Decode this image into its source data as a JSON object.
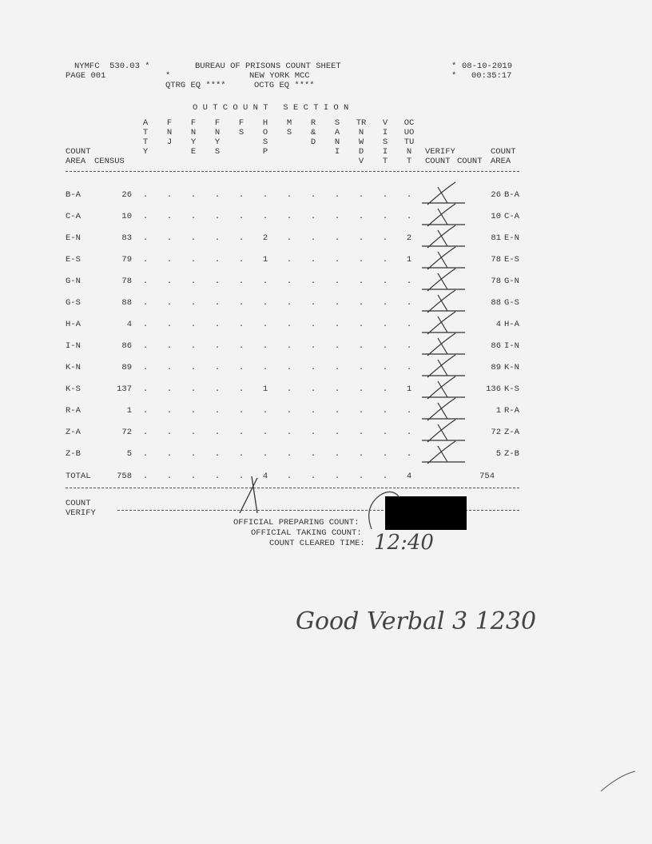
{
  "header": {
    "form_id": "NYMFC  530.03 *",
    "title": "BUREAU OF PRISONS COUNT SHEET",
    "star_right_1": "*",
    "date": "08-10-2019",
    "page": "PAGE 001",
    "star_left_2": "*",
    "institution": "NEW YORK MCC",
    "star_right_2": "*",
    "time": "00:35:17",
    "qtrg": "QTRG EQ ****",
    "octg": "OCTG EQ ****"
  },
  "columns": {
    "outcount_section": "O U T C O U N T   S E C T I O N",
    "count_area_top": "COUNT",
    "count_area_bottom": "AREA",
    "census": "CENSUS",
    "outcount": [
      [
        "A",
        "T",
        "T",
        "Y",
        ""
      ],
      [
        "F",
        "N",
        "J",
        "",
        ""
      ],
      [
        "F",
        "N",
        "Y",
        "E",
        ""
      ],
      [
        "F",
        "N",
        "Y",
        "S",
        ""
      ],
      [
        "F",
        "S",
        "",
        "",
        ""
      ],
      [
        "H",
        "O",
        "S",
        "P",
        ""
      ],
      [
        "M",
        "S",
        "",
        "",
        ""
      ],
      [
        "R",
        "&",
        "D",
        "",
        ""
      ],
      [
        "S",
        "A",
        "N",
        "I",
        ""
      ],
      [
        "TR",
        "N",
        "W",
        "D",
        "V"
      ],
      [
        "V",
        "I",
        "S",
        "I",
        "T"
      ],
      [
        "OC",
        "UO",
        "TU",
        "N",
        "T"
      ]
    ],
    "verify_top": "VERIFY",
    "verify_bottom": "COUNT",
    "count": "COUNT",
    "count_area_right_top": "COUNT",
    "count_area_right_bottom": "AREA"
  },
  "rows": [
    {
      "area": "B-A",
      "census": "26",
      "out": [
        ".",
        ".",
        ".",
        ".",
        ".",
        ".",
        ".",
        ".",
        ".",
        ".",
        ".",
        "."
      ],
      "count": "26"
    },
    {
      "area": "C-A",
      "census": "10",
      "out": [
        ".",
        ".",
        ".",
        ".",
        ".",
        ".",
        ".",
        ".",
        ".",
        ".",
        ".",
        "."
      ],
      "count": "10"
    },
    {
      "area": "E-N",
      "census": "83",
      "out": [
        ".",
        ".",
        ".",
        ".",
        ".",
        "2",
        ".",
        ".",
        ".",
        ".",
        ".",
        "2"
      ],
      "count": "81"
    },
    {
      "area": "E-S",
      "census": "79",
      "out": [
        ".",
        ".",
        ".",
        ".",
        ".",
        "1",
        ".",
        ".",
        ".",
        ".",
        ".",
        "1"
      ],
      "count": "78"
    },
    {
      "area": "G-N",
      "census": "78",
      "out": [
        ".",
        ".",
        ".",
        ".",
        ".",
        ".",
        ".",
        ".",
        ".",
        ".",
        ".",
        "."
      ],
      "count": "78"
    },
    {
      "area": "G-S",
      "census": "88",
      "out": [
        ".",
        ".",
        ".",
        ".",
        ".",
        ".",
        ".",
        ".",
        ".",
        ".",
        ".",
        "."
      ],
      "count": "88"
    },
    {
      "area": "H-A",
      "census": "4",
      "out": [
        ".",
        ".",
        ".",
        ".",
        ".",
        ".",
        ".",
        ".",
        ".",
        ".",
        ".",
        "."
      ],
      "count": "4"
    },
    {
      "area": "I-N",
      "census": "86",
      "out": [
        ".",
        ".",
        ".",
        ".",
        ".",
        ".",
        ".",
        ".",
        ".",
        ".",
        ".",
        "."
      ],
      "count": "86"
    },
    {
      "area": "K-N",
      "census": "89",
      "out": [
        ".",
        ".",
        ".",
        ".",
        ".",
        ".",
        ".",
        ".",
        ".",
        ".",
        ".",
        "."
      ],
      "count": "89"
    },
    {
      "area": "K-S",
      "census": "137",
      "out": [
        ".",
        ".",
        ".",
        ".",
        ".",
        "1",
        ".",
        ".",
        ".",
        ".",
        ".",
        "1"
      ],
      "count": "136"
    },
    {
      "area": "R-A",
      "census": "1",
      "out": [
        ".",
        ".",
        ".",
        ".",
        ".",
        ".",
        ".",
        ".",
        ".",
        ".",
        ".",
        "."
      ],
      "count": "1"
    },
    {
      "area": "Z-A",
      "census": "72",
      "out": [
        ".",
        ".",
        ".",
        ".",
        ".",
        ".",
        ".",
        ".",
        ".",
        ".",
        ".",
        "."
      ],
      "count": "72"
    },
    {
      "area": "Z-B",
      "census": "5",
      "out": [
        ".",
        ".",
        ".",
        ".",
        ".",
        ".",
        ".",
        ".",
        ".",
        ".",
        ".",
        "."
      ],
      "count": "5"
    }
  ],
  "total": {
    "label": "TOTAL",
    "census": "758",
    "out": [
      ".",
      ".",
      ".",
      ".",
      ".",
      "4",
      ".",
      ".",
      ".",
      ".",
      ".",
      "4"
    ],
    "count": "754"
  },
  "count_verify": {
    "top": "COUNT",
    "bottom": "VERIFY"
  },
  "signoff": {
    "preparing": "OFFICIAL PREPARING COUNT:",
    "taking": "OFFICIAL TAKING COUNT:",
    "cleared": "COUNT CLEARED TIME:",
    "cleared_handwritten": "12:40"
  },
  "handwritten_note": "Good Verbal 3 1230"
}
